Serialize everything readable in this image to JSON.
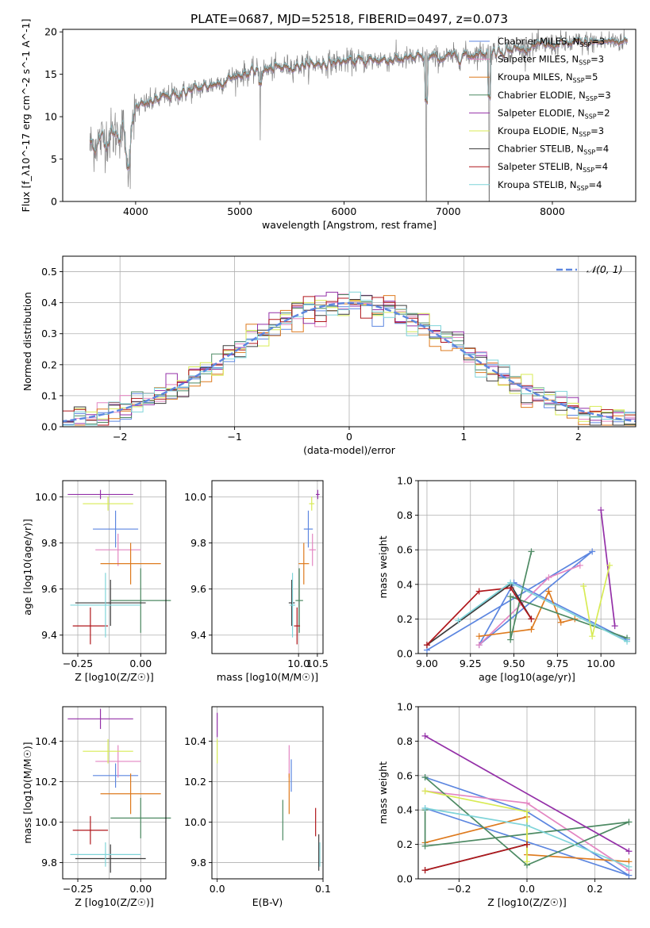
{
  "figure": {
    "title": "PLATE=0687, MJD=52518, FIBERID=0497, z=0.073"
  },
  "models": [
    {
      "name": "Chabrier MILES",
      "nssp": "3",
      "color": "#5c86e0"
    },
    {
      "name": "Salpeter MILES",
      "nssp": "3",
      "color": "#e386c2"
    },
    {
      "name": "Kroupa MILES",
      "nssp": "5",
      "color": "#de7a1e"
    },
    {
      "name": "Chabrier ELODIE",
      "nssp": "3",
      "color": "#4d8a63"
    },
    {
      "name": "Salpeter ELODIE",
      "nssp": "2",
      "color": "#9430a8"
    },
    {
      "name": "Kroupa ELODIE",
      "nssp": "3",
      "color": "#d8eb55"
    },
    {
      "name": "Chabrier STELIB",
      "nssp": "4",
      "color": "#3c3c3c"
    },
    {
      "name": "Salpeter STELIB",
      "nssp": "4",
      "color": "#b0171c"
    },
    {
      "name": "Kroupa STELIB",
      "nssp": "4",
      "color": "#7fd4d9"
    }
  ],
  "chart_data": [
    {
      "id": "spectrum",
      "type": "line",
      "xlabel": "wavelength [Angstrom, rest frame]",
      "ylabel": "Flux [f_λ10^-17 erg cm^-2 s^-1 A^-1]",
      "xlim": [
        3300,
        8800
      ],
      "ylim": [
        0,
        20.3
      ],
      "xticks": [
        4000,
        5000,
        6000,
        7000,
        8000
      ],
      "yticks": [
        0,
        5,
        10,
        15,
        20
      ],
      "legend_position": "right",
      "data_color": "#808080",
      "x_range_data": [
        3560,
        8720
      ],
      "continuum": {
        "x": [
          3560,
          3700,
          3900,
          4000,
          4200,
          4500,
          4800,
          5000,
          5500,
          6000,
          6500,
          7000,
          7500,
          8000,
          8720
        ],
        "y": [
          6.5,
          7.5,
          8.5,
          11.0,
          12.0,
          13.0,
          14.0,
          15.0,
          16.0,
          16.5,
          16.8,
          17.0,
          17.8,
          18.5,
          19.0
        ]
      }
    },
    {
      "id": "residuals",
      "type": "histogram",
      "xlabel": "(data-model)/error",
      "ylabel": "Normed distribution",
      "xlim": [
        -2.5,
        2.5
      ],
      "ylim": [
        0,
        0.55
      ],
      "xticks": [
        -2,
        -1,
        0,
        1,
        2
      ],
      "yticks": [
        0.0,
        0.1,
        0.2,
        0.3,
        0.4,
        0.5
      ],
      "grid": true,
      "legend": "N(0,1)",
      "legend_position": "top-right",
      "normal": {
        "mean": 0,
        "sigma": 1,
        "color": "#5c86e0"
      }
    },
    {
      "id": "age-Z",
      "type": "errorbar",
      "xlabel": "Z [log10(Z/Z☉)]",
      "ylabel": "age [log10(age/yr)]",
      "xlim": [
        -0.31,
        0.1
      ],
      "ylim": [
        9.32,
        10.07
      ],
      "xticks": [
        -0.25,
        -0.15,
        -0.05,
        0.05
      ],
      "xticklabels": [
        "−0.25",
        "0.00"
      ],
      "yticks": [
        9.4,
        9.6,
        9.8,
        10.0
      ],
      "grid": true,
      "points": [
        {
          "model": 0,
          "x": -0.1,
          "xerr": 0.09,
          "y": 9.86,
          "yerr": 0.08
        },
        {
          "model": 1,
          "x": -0.09,
          "xerr": 0.09,
          "y": 9.77,
          "yerr": 0.07
        },
        {
          "model": 2,
          "x": -0.04,
          "xerr": 0.12,
          "y": 9.71,
          "yerr": 0.09
        },
        {
          "model": 3,
          "x": 0.0,
          "xerr": 0.12,
          "y": 9.55,
          "yerr": 0.14
        },
        {
          "model": 4,
          "x": -0.16,
          "xerr": 0.13,
          "y": 10.01,
          "yerr": 0.02
        },
        {
          "model": 5,
          "x": -0.13,
          "xerr": 0.1,
          "y": 9.97,
          "yerr": 0.03
        },
        {
          "model": 6,
          "x": -0.12,
          "xerr": 0.14,
          "y": 9.54,
          "yerr": 0.1
        },
        {
          "model": 7,
          "x": -0.2,
          "xerr": 0.07,
          "y": 9.44,
          "yerr": 0.08
        },
        {
          "model": 8,
          "x": -0.14,
          "xerr": 0.14,
          "y": 9.53,
          "yerr": 0.14
        }
      ]
    },
    {
      "id": "age-mass",
      "type": "errorbar",
      "xlabel": "mass [log10(M/M☉)]",
      "ylabel": "",
      "xlim": [
        7.7,
        10.65
      ],
      "ylim": [
        9.32,
        10.07
      ],
      "xticks": [
        8.0,
        9.0,
        10.0,
        11.0
      ],
      "xticklabels": [
        "10.0",
        "10.5"
      ],
      "yticks": [
        9.4,
        9.6,
        9.8,
        10.0
      ],
      "grid": true,
      "points": [
        {
          "model": 0,
          "x": 10.26,
          "xerr": 0.12,
          "y": 9.86,
          "yerr": 0.08
        },
        {
          "model": 1,
          "x": 10.37,
          "xerr": 0.09,
          "y": 9.77,
          "yerr": 0.07
        },
        {
          "model": 2,
          "x": 10.14,
          "xerr": 0.14,
          "y": 9.71,
          "yerr": 0.09
        },
        {
          "model": 3,
          "x": 10.02,
          "xerr": 0.1,
          "y": 9.55,
          "yerr": 0.14
        },
        {
          "model": 4,
          "x": 10.51,
          "xerr": 0.05,
          "y": 10.01,
          "yerr": 0.02
        },
        {
          "model": 5,
          "x": 10.35,
          "xerr": 0.07,
          "y": 9.97,
          "yerr": 0.03
        },
        {
          "model": 6,
          "x": 9.82,
          "xerr": 0.08,
          "y": 9.54,
          "yerr": 0.1
        },
        {
          "model": 7,
          "x": 9.96,
          "xerr": 0.08,
          "y": 9.44,
          "yerr": 0.08
        },
        {
          "model": 8,
          "x": 9.84,
          "xerr": 0.07,
          "y": 9.53,
          "yerr": 0.14
        }
      ]
    },
    {
      "id": "weights-age",
      "type": "line",
      "xlabel": "age [log10(age/yr)]",
      "ylabel": "mass weight",
      "xlim": [
        8.95,
        10.2
      ],
      "ylim": [
        0.0,
        1.0
      ],
      "xticks": [
        9.0,
        9.25,
        9.5,
        9.75,
        10.0
      ],
      "xticklabels": [
        "9.00",
        "9.25",
        "9.50",
        "9.75",
        "10.00"
      ],
      "yticks": [
        0.0,
        0.2,
        0.4,
        0.6,
        0.8,
        1.0
      ],
      "grid": true,
      "series": [
        {
          "model": 0,
          "x": [
            9.0,
            9.95,
            9.3,
            9.5,
            10.15
          ],
          "y": [
            0.02,
            0.59,
            0.05,
            0.41,
            0.08
          ]
        },
        {
          "model": 1,
          "x": [
            9.3,
            9.7,
            9.88
          ],
          "y": [
            0.05,
            0.44,
            0.51
          ]
        },
        {
          "model": 2,
          "x": [
            9.3,
            9.6,
            9.7,
            9.77,
            9.85
          ],
          "y": [
            0.1,
            0.14,
            0.36,
            0.18,
            0.2
          ]
        },
        {
          "model": 3,
          "x": [
            9.6,
            9.48,
            9.48,
            10.15
          ],
          "y": [
            0.59,
            0.08,
            0.33,
            0.09
          ]
        },
        {
          "model": 4,
          "x": [
            10.0,
            10.08
          ],
          "y": [
            0.83,
            0.16
          ]
        },
        {
          "model": 5,
          "x": [
            9.9,
            9.95,
            10.05
          ],
          "y": [
            0.39,
            0.1,
            0.51
          ]
        },
        {
          "model": 6,
          "x": [
            9.0,
            9.48,
            9.6
          ],
          "y": [
            0.05,
            0.4,
            0.2
          ]
        },
        {
          "model": 7,
          "x": [
            9.0,
            9.3,
            9.48,
            9.6
          ],
          "y": [
            0.05,
            0.36,
            0.38,
            0.2
          ]
        },
        {
          "model": 8,
          "x": [
            9.18,
            9.48,
            10.15
          ],
          "y": [
            0.19,
            0.41,
            0.07
          ]
        }
      ]
    },
    {
      "id": "mass-Z",
      "type": "errorbar",
      "xlabel": "Z [log10(Z/Z☉)]",
      "ylabel": "mass [log10(M/M☉)]",
      "xlim": [
        -0.31,
        0.1
      ],
      "ylim": [
        9.72,
        10.57
      ],
      "xticks": [
        -0.25,
        -0.15,
        -0.05,
        0.05
      ],
      "xticklabels": [
        "−0.25",
        "0.00"
      ],
      "yticks": [
        9.8,
        10.0,
        10.2,
        10.4
      ],
      "grid": true,
      "points": [
        {
          "model": 0,
          "x": -0.1,
          "xerr": 0.09,
          "y": 10.23,
          "yerr": 0.06
        },
        {
          "model": 1,
          "x": -0.09,
          "xerr": 0.09,
          "y": 10.3,
          "yerr": 0.08
        },
        {
          "model": 2,
          "x": -0.04,
          "xerr": 0.12,
          "y": 10.14,
          "yerr": 0.1
        },
        {
          "model": 3,
          "x": 0.0,
          "xerr": 0.12,
          "y": 10.02,
          "yerr": 0.1
        },
        {
          "model": 4,
          "x": -0.16,
          "xerr": 0.13,
          "y": 10.51,
          "yerr": 0.05
        },
        {
          "model": 5,
          "x": -0.13,
          "xerr": 0.1,
          "y": 10.35,
          "yerr": 0.06
        },
        {
          "model": 6,
          "x": -0.12,
          "xerr": 0.14,
          "y": 9.82,
          "yerr": 0.07
        },
        {
          "model": 7,
          "x": -0.2,
          "xerr": 0.07,
          "y": 9.96,
          "yerr": 0.07
        },
        {
          "model": 8,
          "x": -0.14,
          "xerr": 0.14,
          "y": 9.84,
          "yerr": 0.06
        }
      ]
    },
    {
      "id": "mass-EBV",
      "type": "errorbar",
      "xlabel": "E(B-V)",
      "ylabel": "",
      "xlim": [
        -0.005,
        0.1
      ],
      "ylim": [
        9.72,
        10.57
      ],
      "xticks": [
        0.0,
        0.1
      ],
      "xticklabels": [
        "0.0",
        "0.1"
      ],
      "yticks": [
        9.8,
        10.0,
        10.2,
        10.4
      ],
      "grid": true,
      "points": [
        {
          "model": 0,
          "x": 0.07,
          "xerr": 0,
          "y": 10.23,
          "yerr": 0.08
        },
        {
          "model": 1,
          "x": 0.068,
          "xerr": 0,
          "y": 10.3,
          "yerr": 0.08
        },
        {
          "model": 2,
          "x": 0.068,
          "xerr": 0,
          "y": 10.14,
          "yerr": 0.1
        },
        {
          "model": 3,
          "x": 0.062,
          "xerr": 0,
          "y": 10.01,
          "yerr": 0.1
        },
        {
          "model": 4,
          "x": 0.0,
          "xerr": 0,
          "y": 10.48,
          "yerr": 0.06
        },
        {
          "model": 5,
          "x": 0.0,
          "xerr": 0,
          "y": 10.35,
          "yerr": 0.06
        },
        {
          "model": 6,
          "x": 0.096,
          "xerr": 0,
          "y": 9.85,
          "yerr": 0.09
        },
        {
          "model": 7,
          "x": 0.093,
          "xerr": 0,
          "y": 10.0,
          "yerr": 0.07
        },
        {
          "model": 8,
          "x": 0.097,
          "xerr": 0,
          "y": 9.84,
          "yerr": 0.06
        }
      ]
    },
    {
      "id": "weights-Z",
      "type": "line",
      "xlabel": "Z [log10(Z/Z☉)]",
      "ylabel": "mass weight",
      "xlim": [
        -0.32,
        0.32
      ],
      "ylim": [
        0.0,
        1.0
      ],
      "xticks": [
        -0.2,
        0.0,
        0.2
      ],
      "xticklabels": [
        "−0.2",
        "0.0",
        "0.2"
      ],
      "yticks": [
        0.0,
        0.2,
        0.4,
        0.6,
        0.8,
        1.0
      ],
      "grid": true,
      "series": [
        {
          "model": 0,
          "x": [
            -0.3,
            0.0,
            0.3,
            -0.3
          ],
          "y": [
            0.59,
            0.39,
            0.02,
            0.41
          ]
        },
        {
          "model": 1,
          "x": [
            -0.3,
            0.0,
            0.3
          ],
          "y": [
            0.51,
            0.44,
            0.05
          ]
        },
        {
          "model": 2,
          "x": [
            -0.3,
            0.0,
            0.0,
            0.3
          ],
          "y": [
            0.21,
            0.36,
            0.14,
            0.1
          ]
        },
        {
          "model": 3,
          "x": [
            -0.3,
            0.0,
            0.3,
            -0.3,
            -0.3
          ],
          "y": [
            0.59,
            0.08,
            0.33,
            0.19,
            0.4
          ]
        },
        {
          "model": 4,
          "x": [
            -0.3,
            0.3
          ],
          "y": [
            0.83,
            0.16
          ]
        },
        {
          "model": 5,
          "x": [
            -0.3,
            0.0,
            0.0
          ],
          "y": [
            0.51,
            0.39,
            0.1
          ]
        },
        {
          "model": 6,
          "x": [
            -0.3,
            0.0
          ],
          "y": [
            0.05,
            0.2
          ]
        },
        {
          "model": 7,
          "x": [
            -0.3,
            0.0
          ],
          "y": [
            0.05,
            0.2
          ]
        },
        {
          "model": 8,
          "x": [
            -0.3,
            0.0,
            0.3
          ],
          "y": [
            0.41,
            0.31,
            0.07
          ]
        }
      ]
    }
  ]
}
